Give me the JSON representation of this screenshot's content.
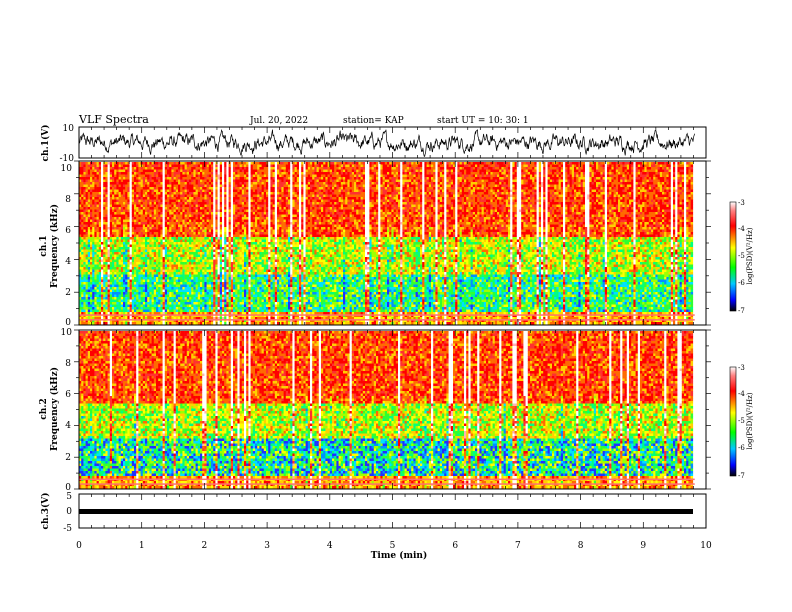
{
  "header": {
    "title": "VLF Spectra",
    "date": "Jul. 20, 2022",
    "station": "station= KAP",
    "start": "start UT = 10: 30: 1"
  },
  "chart_data": [
    {
      "type": "line",
      "panel": "ch1-waveform",
      "ylabel": "ch.1(V)",
      "ylim": [
        -10,
        10
      ],
      "y_tick_labels": [
        "10",
        "-10"
      ],
      "xlim": [
        0,
        10
      ],
      "note_series_color": "#000000"
    },
    {
      "type": "heatmap",
      "panel": "ch1-spectrogram",
      "ylabel": "ch.1\nFrequency (kHz)",
      "ylabel_line1": "ch.1",
      "ylabel_line2": "Frequency (kHz)",
      "ylim": [
        0,
        10
      ],
      "y_tick_labels": [
        "0",
        "2",
        "4",
        "6",
        "8",
        "10"
      ],
      "xlim": [
        0,
        9.85
      ],
      "colorbar": {
        "label": "log(PSD)(V²/Hz)",
        "range": [
          -7,
          -3
        ],
        "tick_labels": [
          "-3",
          "-4",
          "-5",
          "-6",
          "-7"
        ]
      }
    },
    {
      "type": "heatmap",
      "panel": "ch2-spectrogram",
      "ylabel_line1": "ch.2",
      "ylabel_line2": "Frequency (kHz)",
      "ylim": [
        0,
        10
      ],
      "y_tick_labels": [
        "0",
        "2",
        "4",
        "6",
        "8",
        "10"
      ],
      "xlim": [
        0,
        9.85
      ],
      "colorbar": {
        "label": "log(PSD)(V²/Hz)",
        "range": [
          -7,
          -3
        ],
        "tick_labels": [
          "-3",
          "-4",
          "-5",
          "-6",
          "-7"
        ]
      }
    },
    {
      "type": "line",
      "panel": "ch3-waveform",
      "ylabel": "ch.3(V)",
      "ylim": [
        -5,
        5
      ],
      "y_tick_labels": [
        "5",
        "0",
        "-5"
      ],
      "xlim": [
        0,
        10
      ],
      "xlabel": "Time (min)",
      "x_tick_labels": [
        "0",
        "1",
        "2",
        "3",
        "4",
        "5",
        "6",
        "7",
        "8",
        "9",
        "10"
      ],
      "level": 0
    }
  ]
}
